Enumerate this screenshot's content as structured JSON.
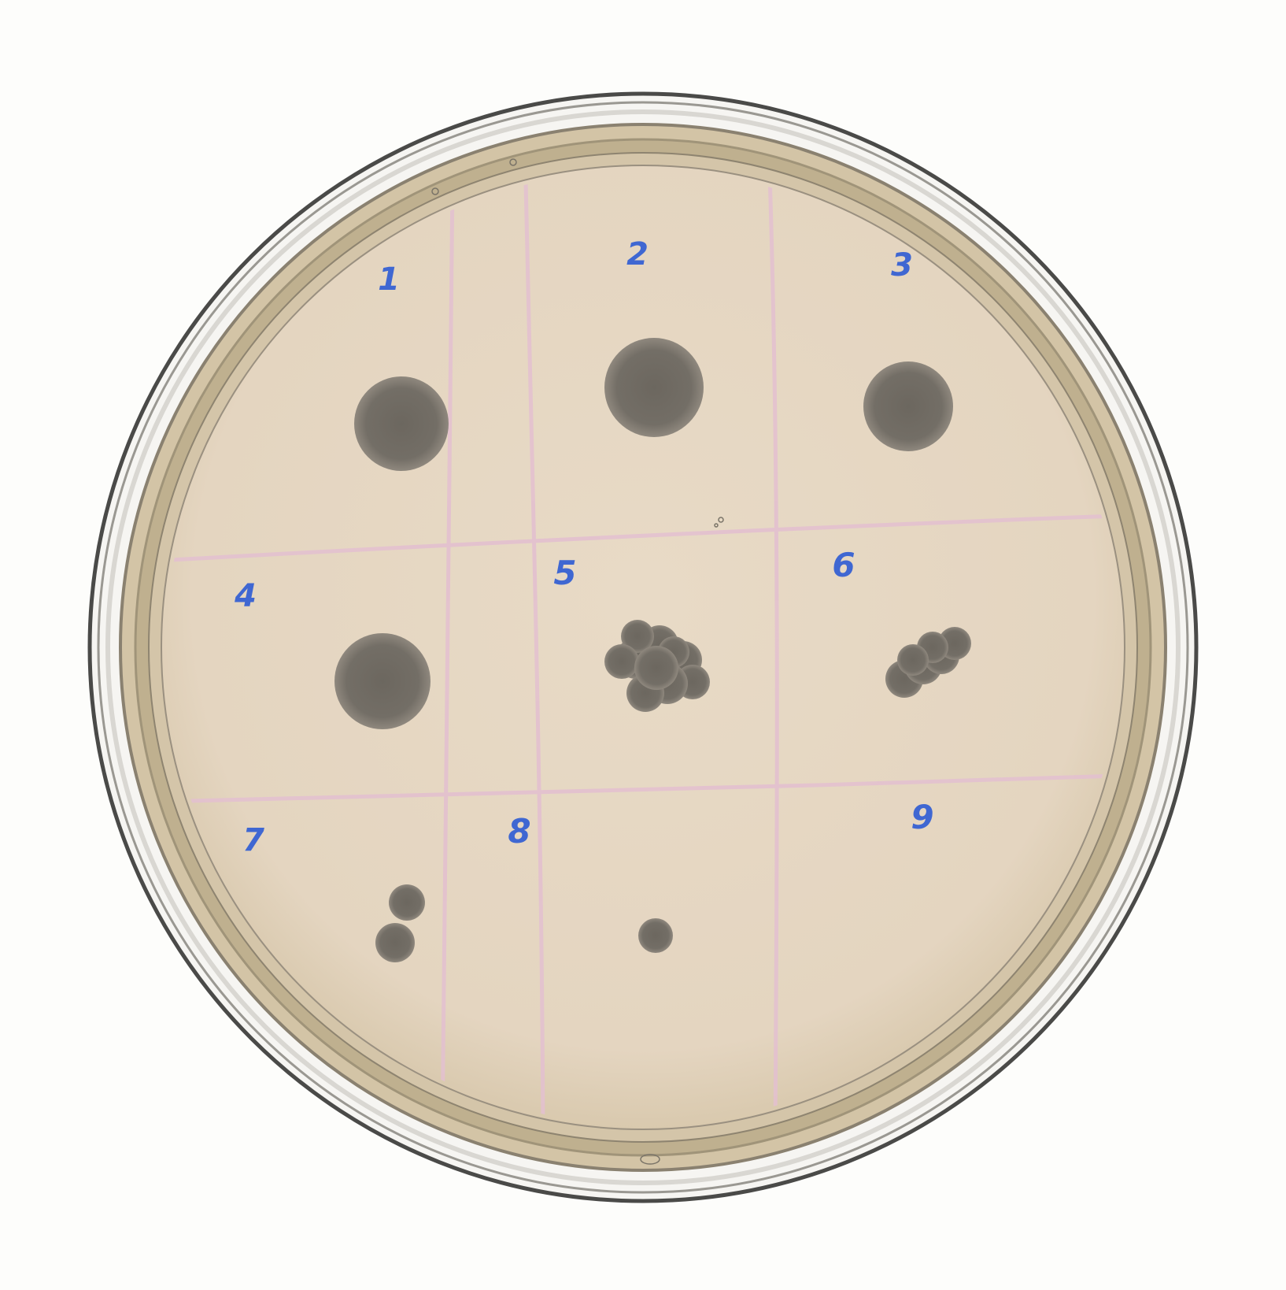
{
  "plate": {
    "wells": [
      {
        "label": "1"
      },
      {
        "label": "2"
      },
      {
        "label": "3"
      },
      {
        "label": "4"
      },
      {
        "label": "5"
      },
      {
        "label": "6"
      },
      {
        "label": "7"
      },
      {
        "label": "8"
      },
      {
        "label": "9"
      }
    ]
  },
  "colors": {
    "background": "#fdfdfb",
    "agar": "#e6d8c4",
    "plate_rim": "#c4b697",
    "grid_lines": "#e3bfd0",
    "colonies": "#76716a",
    "label_ink": "#3f67d2"
  }
}
